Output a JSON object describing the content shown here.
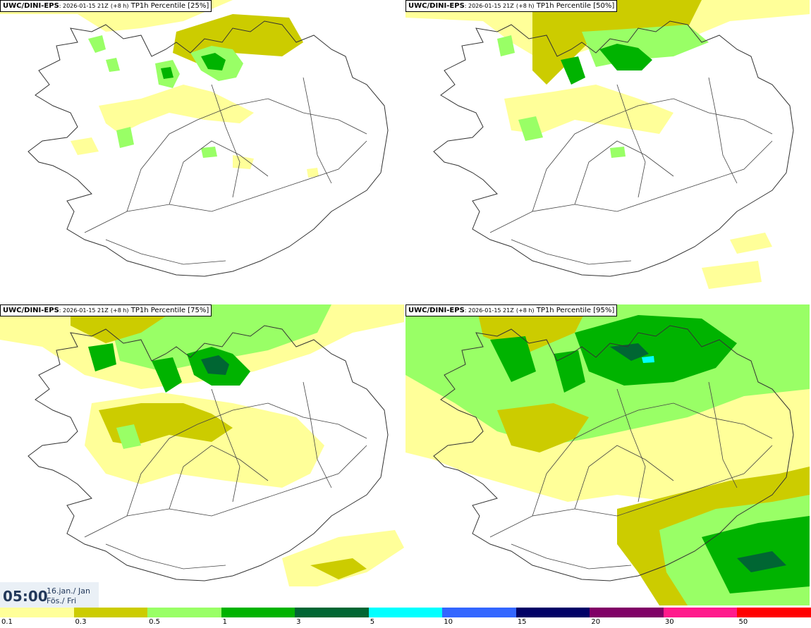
{
  "panels": [
    {
      "title_model": "UWC/DINI-EPS",
      "title_run": ": 2026-01-15 21Z",
      "title_lead": "(+8 h)",
      "title_field": "TP1h Percentile [25%]"
    },
    {
      "title_model": "UWC/DINI-EPS",
      "title_run": ": 2026-01-15 21Z",
      "title_lead": "(+8 h)",
      "title_field": "TP1h Percentile [50%]"
    },
    {
      "title_model": "UWC/DINI-EPS",
      "title_run": ": 2026-01-15 21Z",
      "title_lead": "(+8 h)",
      "title_field": "TP1h Percentile [75%]"
    },
    {
      "title_model": "UWC/DINI-EPS",
      "title_run": ": 2026-01-15 21Z",
      "title_lead": "(+8 h)",
      "title_field": "TP1h Percentile [95%]"
    }
  ],
  "valid_time": {
    "time": "05:00",
    "date_line": "16.jan./ Jan",
    "weekday_line": "Fös./ Fri"
  },
  "legend": {
    "colors": [
      "#ffff99",
      "#cccc00",
      "#99ff66",
      "#00b300",
      "#006633",
      "#00ffff",
      "#3366ff",
      "#000066",
      "#800066",
      "#ff1a8c",
      "#ff0000"
    ],
    "labels": [
      "0.1",
      "0.3",
      "0.5",
      "1",
      "3",
      "5",
      "10",
      "15",
      "20",
      "30",
      "50"
    ]
  }
}
